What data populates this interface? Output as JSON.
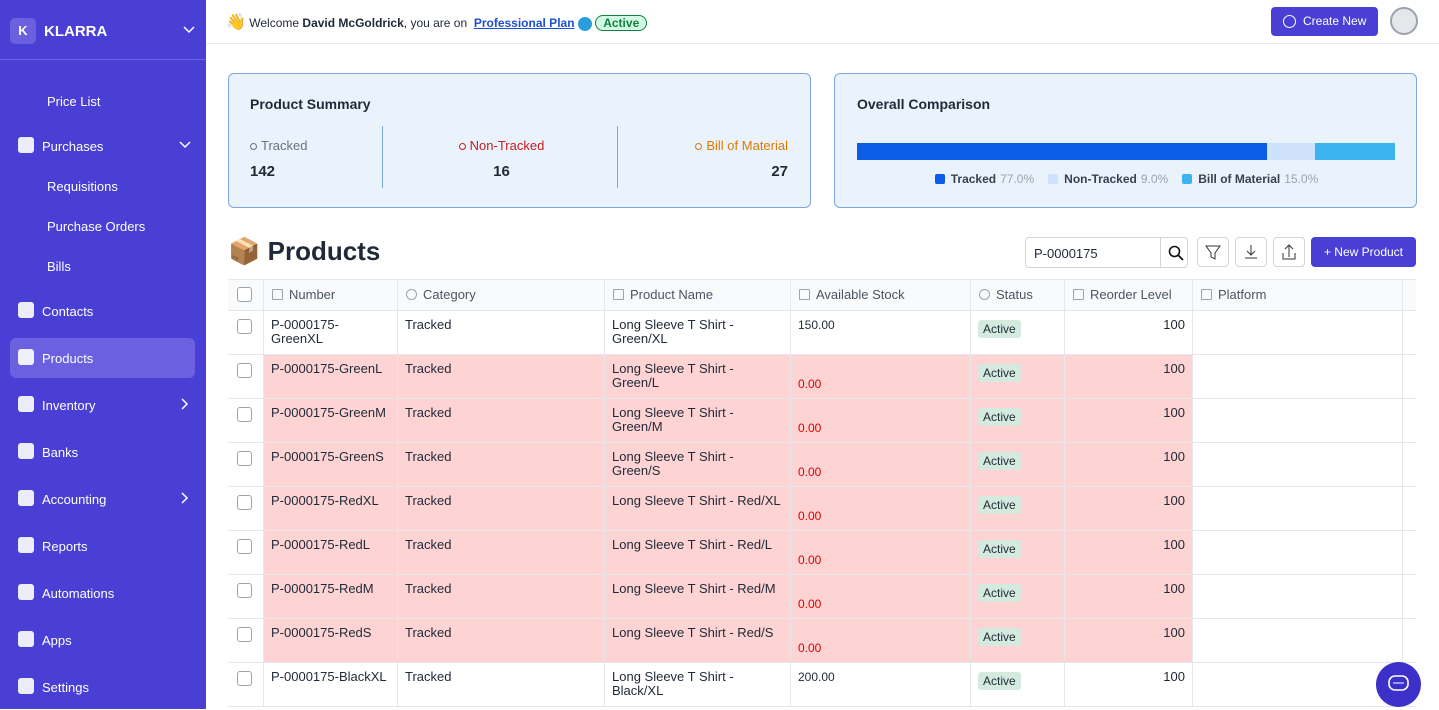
{
  "sidebar": {
    "initial": "K",
    "brand": "KLARRA",
    "active": "Products",
    "nav": [
      {
        "children": [
          "Price List"
        ]
      },
      {
        "label": "Purchases",
        "children": [
          "Requisitions",
          "Purchase Orders",
          "Bills"
        ]
      },
      {
        "label": "Contacts"
      },
      {
        "label": "Products"
      },
      {
        "label": "Inventory",
        "expandable": true
      },
      {
        "label": "Banks"
      },
      {
        "label": "Accounting",
        "expandable": true
      },
      {
        "label": "Reports"
      },
      {
        "label": "Automations"
      },
      {
        "label": "Apps"
      },
      {
        "label": "Settings"
      }
    ]
  },
  "header": {
    "wave": "👋",
    "welcome": "Welcome",
    "user": "David McGoldrick",
    "suffix": ", you are on",
    "plan": "Professional Plan",
    "status": "Active",
    "create": "Create New"
  },
  "summary": {
    "title": "Product Summary",
    "stats": [
      {
        "label": "Tracked",
        "value": "142",
        "color": "#6b7280"
      },
      {
        "label": "Non-Tracked",
        "value": "16",
        "color": "#c81e1e"
      },
      {
        "label": "Bill of Material",
        "value": "27",
        "color": "#e07b00"
      }
    ]
  },
  "comparison": {
    "title": "Overall Comparison",
    "segments": [
      {
        "name": "Tracked",
        "value": 77.0,
        "label": "77.0%",
        "color": "#0b5ce6"
      },
      {
        "name": "Non-Tracked",
        "value": 9.0,
        "label": "9.0%",
        "color": "#cfe2fb"
      },
      {
        "name": "Bill of Material",
        "value": 15.0,
        "label": "15.0%",
        "color": "#3cb4f0"
      }
    ]
  },
  "products": {
    "icon": "📦",
    "title": "Products",
    "search": "P-0000175",
    "new": "+ New Product",
    "columns": [
      "Number",
      "Category",
      "Product Name",
      "Available Stock",
      "Status",
      "Reorder Level",
      "Platform"
    ],
    "rows": [
      {
        "number": "P-0000175-GreenXL",
        "category": "Tracked",
        "name": "Long Sleeve T Shirt - Green/XL",
        "stock": "150.00",
        "status": "Active",
        "reorder": "100"
      },
      {
        "number": "P-0000175-GreenL",
        "category": "Tracked",
        "name": "Long Sleeve T Shirt - Green/L",
        "stock": "0.00",
        "status": "Active",
        "reorder": "100"
      },
      {
        "number": "P-0000175-GreenM",
        "category": "Tracked",
        "name": "Long Sleeve T Shirt - Green/M",
        "stock": "0.00",
        "status": "Active",
        "reorder": "100"
      },
      {
        "number": "P-0000175-GreenS",
        "category": "Tracked",
        "name": "Long Sleeve T Shirt - Green/S",
        "stock": "0.00",
        "status": "Active",
        "reorder": "100"
      },
      {
        "number": "P-0000175-RedXL",
        "category": "Tracked",
        "name": "Long Sleeve T Shirt - Red/XL",
        "stock": "0.00",
        "status": "Active",
        "reorder": "100"
      },
      {
        "number": "P-0000175-RedL",
        "category": "Tracked",
        "name": "Long Sleeve T Shirt - Red/L",
        "stock": "0.00",
        "status": "Active",
        "reorder": "100"
      },
      {
        "number": "P-0000175-RedM",
        "category": "Tracked",
        "name": "Long Sleeve T Shirt - Red/M",
        "stock": "0.00",
        "status": "Active",
        "reorder": "100"
      },
      {
        "number": "P-0000175-RedS",
        "category": "Tracked",
        "name": "Long Sleeve T Shirt - Red/S",
        "stock": "0.00",
        "status": "Active",
        "reorder": "100"
      },
      {
        "number": "P-0000175-BlackXL",
        "category": "Tracked",
        "name": "Long Sleeve T Shirt - Black/XL",
        "stock": "200.00",
        "status": "Active",
        "reorder": "100"
      }
    ]
  }
}
